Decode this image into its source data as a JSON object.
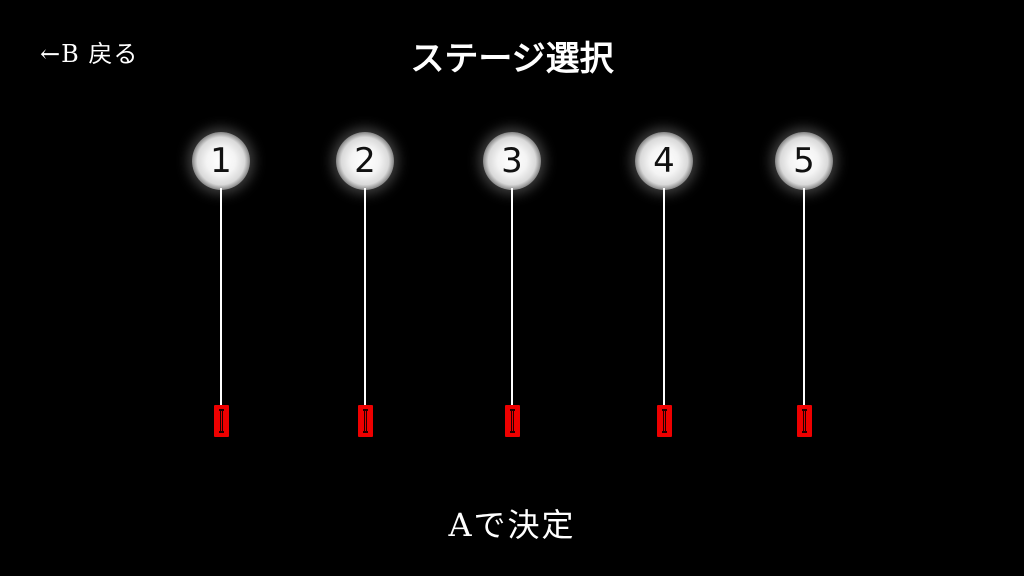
{
  "header": {
    "back_hint": "←B 戻る",
    "title": "ステージ選択"
  },
  "stages": [
    {
      "number": "1"
    },
    {
      "number": "2"
    },
    {
      "number": "3"
    },
    {
      "number": "4"
    },
    {
      "number": "5"
    }
  ],
  "footer": {
    "confirm_hint": "Aで決定"
  },
  "colors": {
    "background": "#000000",
    "text": "#ffffff",
    "charm": "#ee0000",
    "orb": "#f4f4f4"
  },
  "icons": {
    "stage_marker": "glowing-orb-icon",
    "stage_charm": "red-charm-icon"
  }
}
